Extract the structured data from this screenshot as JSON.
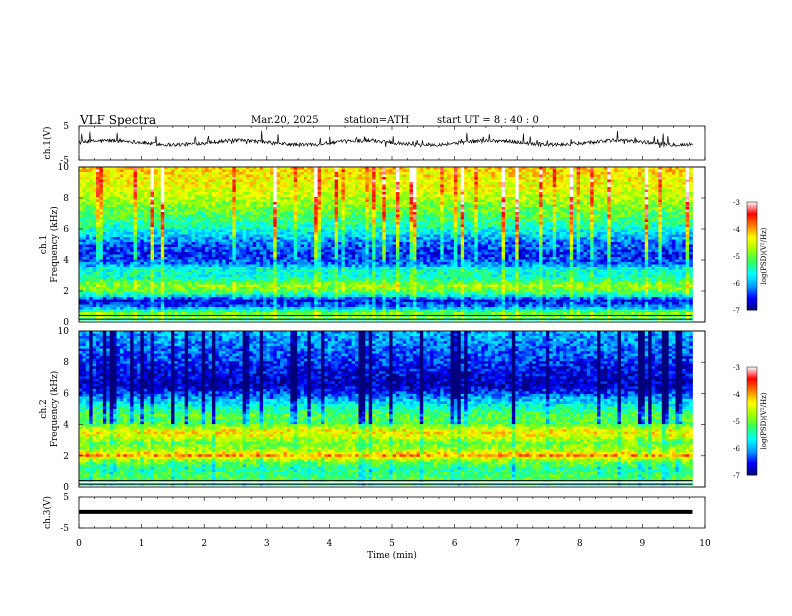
{
  "header": {
    "title": "VLF  Spectra",
    "date": "Mar.20, 2025",
    "station": "station=ATH",
    "start_ut": "start  UT  =   8 : 40 : 0"
  },
  "chart_data": [
    {
      "type": "line",
      "panel": "ch1-waveform",
      "ylabel": "ch.1(V)",
      "ylim": [
        -5,
        5
      ],
      "yticks": [
        "5",
        "-5"
      ],
      "xlim": [
        0,
        10
      ],
      "x_end": 9.8,
      "approx_mean": 0.1,
      "noise": "dense spiky waveform"
    },
    {
      "type": "heatmap",
      "panel": "ch1-spectrogram",
      "ylabel": "Frequency  (kHz)",
      "channel_label": "ch.1",
      "ylim": [
        0,
        10
      ],
      "yticks": [
        "0",
        "2",
        "4",
        "6",
        "8",
        "10"
      ],
      "xlim": [
        0,
        10
      ],
      "x_end": 9.8,
      "band_profile": [
        {
          "f": 0.0,
          "v": -5.6
        },
        {
          "f": 0.5,
          "v": -4.8
        },
        {
          "f": 1.0,
          "v": -6.3
        },
        {
          "f": 1.4,
          "v": -6.6
        },
        {
          "f": 1.9,
          "v": -5.2
        },
        {
          "f": 2.3,
          "v": -4.8
        },
        {
          "f": 2.8,
          "v": -5.5
        },
        {
          "f": 3.4,
          "v": -5.6
        },
        {
          "f": 3.8,
          "v": -6.3
        },
        {
          "f": 4.4,
          "v": -6.5
        },
        {
          "f": 5.2,
          "v": -6.2
        },
        {
          "f": 5.8,
          "v": -5.7
        },
        {
          "f": 6.5,
          "v": -5.3
        },
        {
          "f": 7.5,
          "v": -4.9
        },
        {
          "f": 8.5,
          "v": -4.5
        },
        {
          "f": 9.5,
          "v": -4.3
        },
        {
          "f": 10.0,
          "v": -4.2
        }
      ],
      "colorbar": {
        "label": "log(PSD)(V²/Hz)",
        "range": [
          -7,
          -3
        ],
        "ticks": [
          "-3",
          "-4",
          "-5",
          "-6",
          "-7"
        ]
      }
    },
    {
      "type": "heatmap",
      "panel": "ch2-spectrogram",
      "ylabel": "Frequency  (kHz)",
      "channel_label": "ch.2",
      "ylim": [
        0,
        10
      ],
      "yticks": [
        "0",
        "2",
        "4",
        "6",
        "8",
        "10"
      ],
      "xlim": [
        0,
        10
      ],
      "x_end": 9.8,
      "band_profile": [
        {
          "f": 0.0,
          "v": -5.5
        },
        {
          "f": 0.6,
          "v": -5.1
        },
        {
          "f": 1.2,
          "v": -5.4
        },
        {
          "f": 1.8,
          "v": -4.7
        },
        {
          "f": 2.0,
          "v": -3.9
        },
        {
          "f": 2.3,
          "v": -4.6
        },
        {
          "f": 2.8,
          "v": -5.0
        },
        {
          "f": 3.3,
          "v": -4.4
        },
        {
          "f": 3.6,
          "v": -4.3
        },
        {
          "f": 4.1,
          "v": -5.2
        },
        {
          "f": 4.6,
          "v": -5.1
        },
        {
          "f": 5.2,
          "v": -5.6
        },
        {
          "f": 5.8,
          "v": -6.2
        },
        {
          "f": 6.5,
          "v": -6.8
        },
        {
          "f": 7.5,
          "v": -6.6
        },
        {
          "f": 8.5,
          "v": -6.3
        },
        {
          "f": 10.0,
          "v": -6.0
        }
      ],
      "colorbar": {
        "label": "log(PSD)(V²/Hz)",
        "range": [
          -7,
          -3
        ],
        "ticks": [
          "-3",
          "-4",
          "-5",
          "-6",
          "-7"
        ]
      }
    },
    {
      "type": "line",
      "panel": "ch3-waveform",
      "ylabel": "ch.3(V)",
      "ylim": [
        -5,
        5
      ],
      "yticks": [
        "5",
        "-5"
      ],
      "xlim": [
        0,
        10
      ],
      "x_end": 9.8,
      "approx_mean": 0.2,
      "noise": "flat thick line"
    }
  ],
  "x_axis": {
    "label": "Time  (min)",
    "ticks": [
      "0",
      "1",
      "2",
      "3",
      "4",
      "5",
      "6",
      "7",
      "8",
      "9",
      "10"
    ]
  },
  "colors": {
    "colormap": [
      "#00007a",
      "#0000ff",
      "#00a0ff",
      "#00ffff",
      "#30ff60",
      "#a0ff00",
      "#ffff00",
      "#ff8000",
      "#ff0000",
      "#ffffff"
    ]
  }
}
